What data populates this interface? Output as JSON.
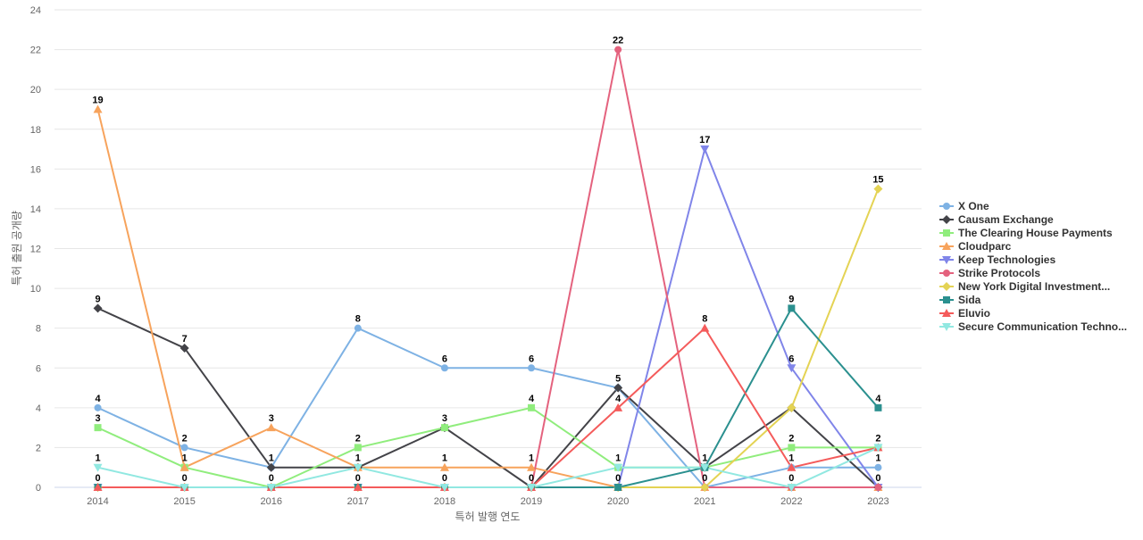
{
  "chart_data": {
    "type": "line",
    "title": "",
    "xlabel": "특허 발행 연도",
    "ylabel": "특허 출원 공개량",
    "ylim": [
      0,
      24
    ],
    "y_ticks": [
      0,
      2,
      4,
      6,
      8,
      10,
      12,
      14,
      16,
      18,
      20,
      22,
      24
    ],
    "grid": "horizontal",
    "legend_position": "right",
    "categories": [
      "2014",
      "2015",
      "2016",
      "2017",
      "2018",
      "2019",
      "2020",
      "2021",
      "2022",
      "2023"
    ],
    "series": [
      {
        "name": "X One",
        "color": "#7eb2e4",
        "marker": "circle",
        "values": [
          4,
          2,
          1,
          8,
          6,
          6,
          5,
          0,
          1,
          1
        ],
        "labels": [
          "4",
          "2",
          "1",
          "8",
          "6",
          "6",
          "5",
          "",
          "1",
          "1"
        ]
      },
      {
        "name": "Causam Exchange",
        "color": "#434348",
        "marker": "diamond",
        "values": [
          9,
          7,
          1,
          1,
          3,
          0,
          5,
          1,
          4,
          0
        ],
        "labels": [
          "9",
          "7",
          "",
          "",
          "",
          "",
          "",
          "",
          "",
          ""
        ]
      },
      {
        "name": "The Clearing House Payments",
        "color": "#90ed7d",
        "marker": "square",
        "values": [
          3,
          1,
          0,
          2,
          3,
          4,
          1,
          1,
          2,
          2
        ],
        "labels": [
          "3",
          "",
          "",
          "2",
          "3",
          "4",
          "1",
          "1",
          "2",
          "2"
        ]
      },
      {
        "name": "Cloudparc",
        "color": "#f7a35c",
        "marker": "triangle",
        "values": [
          19,
          1,
          3,
          1,
          1,
          1,
          0,
          0,
          0,
          0
        ],
        "labels": [
          "19",
          "1",
          "3",
          "1",
          "1",
          "1",
          "",
          "0",
          "",
          ""
        ]
      },
      {
        "name": "Keep Technologies",
        "color": "#8085e9",
        "marker": "triangle-down",
        "values": [
          0,
          0,
          0,
          0,
          0,
          0,
          0,
          17,
          6,
          0
        ],
        "labels": [
          "",
          "",
          "",
          "",
          "",
          "",
          "",
          "17",
          "6",
          ""
        ]
      },
      {
        "name": "Strike Protocols",
        "color": "#e4627e",
        "marker": "circle",
        "values": [
          0,
          0,
          0,
          0,
          0,
          0,
          22,
          0,
          0,
          0
        ],
        "labels": [
          "",
          "",
          "",
          "",
          "",
          "",
          "22",
          "",
          "0",
          "0"
        ]
      },
      {
        "name": "New York Digital Investment...",
        "color": "#e4d354",
        "marker": "diamond",
        "values": [
          0,
          0,
          0,
          0,
          0,
          0,
          0,
          0,
          4,
          15
        ],
        "labels": [
          "",
          "",
          "",
          "",
          "",
          "",
          "",
          "",
          "",
          "15"
        ]
      },
      {
        "name": "Sida",
        "color": "#2b908f",
        "marker": "square",
        "values": [
          0,
          0,
          0,
          0,
          0,
          0,
          0,
          1,
          9,
          4
        ],
        "labels": [
          "0",
          "0",
          "0",
          "0",
          "0",
          "0",
          "0",
          "",
          "9",
          "4"
        ]
      },
      {
        "name": "Eluvio",
        "color": "#f45b5b",
        "marker": "triangle",
        "values": [
          0,
          0,
          0,
          0,
          0,
          0,
          4,
          8,
          1,
          2
        ],
        "labels": [
          "",
          "",
          "",
          "",
          "",
          "",
          "4",
          "8",
          "",
          ""
        ]
      },
      {
        "name": "Secure Communication Techno...",
        "color": "#91e8e1",
        "marker": "triangle-down",
        "values": [
          1,
          0,
          0,
          1,
          0,
          0,
          1,
          1,
          0,
          2
        ],
        "labels": [
          "1",
          "",
          "",
          "",
          "",
          "",
          "",
          "",
          "",
          ""
        ]
      }
    ]
  }
}
